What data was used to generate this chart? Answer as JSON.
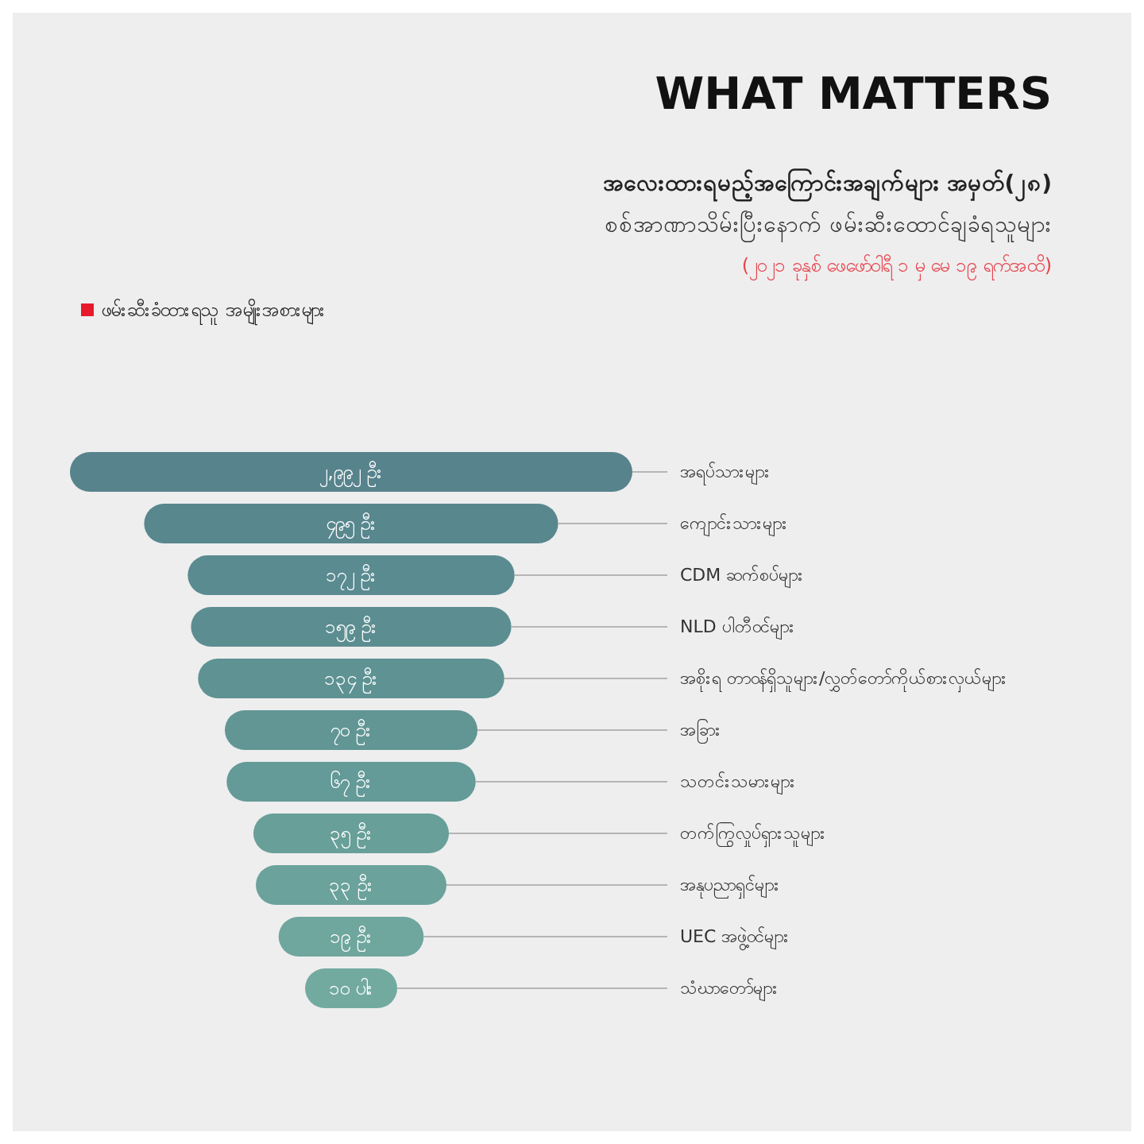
{
  "chart_data": {
    "type": "other",
    "title": "WHAT MATTERS",
    "subtitle": "အလေးထားရမည့်အကြောင်းအချက်များ အမှတ်(၂၈)",
    "annotations": [
      "စစ်အာဏာသိမ်းပြီးနောက် ဖမ်းဆီးထောင်ချခံရသူများ",
      "(၂၀၂၁ ခုနှစ် ဖေဖော်ဝါရီ ၁ မှ မေ ၁၉ ရက်အထိ)"
    ],
    "legend": "top left",
    "data_labels": false,
    "categories": [
      "အရပ်သားများ",
      "ကျောင်းသားများ",
      "CDM ဆက်စပ်များ",
      "NLD ပါတီဝင်များ",
      "အစိုးရ တာဝန်ရှိသူများ/လွှတ်တော်ကိုယ်စားလှယ်များ",
      "အခြား",
      "သတင်းသမားများ",
      "တက်ကြွလှုပ်ရှားသူများ",
      "အနုပညာရှင်များ",
      "UEC အဖွဲ့ဝင်များ",
      "သံဃာတော်များ"
    ],
    "series": [
      {
        "name": "ဖမ်းဆီးခံထားရသူ အမျိုးအစားများ",
        "color": "#e8192c",
        "values": [
          2992,
          495,
          172,
          159,
          134,
          70,
          67,
          35,
          33,
          19,
          10
        ],
        "value_labels": [
          "၂,၉၉၂ ဦး",
          "၄၉၅ ဦး",
          "၁၇၂ ဦး",
          "၁၅၉ ဦး",
          "၁၃၄ ဦး",
          "၇၀ ဦး",
          "၆၇ ဦး",
          "၃၅ ဦး",
          "၃၃ ဦး",
          "၁၉ ဦး",
          "၁၀ ပါး"
        ],
        "colors": [
          "#57838c",
          "#58878e",
          "#5a8b90",
          "#5c8e91",
          "#5e9293",
          "#619695",
          "#649a97",
          "#689f99",
          "#6ba29b",
          "#6fa69d",
          "#72aa9f"
        ]
      }
    ]
  }
}
